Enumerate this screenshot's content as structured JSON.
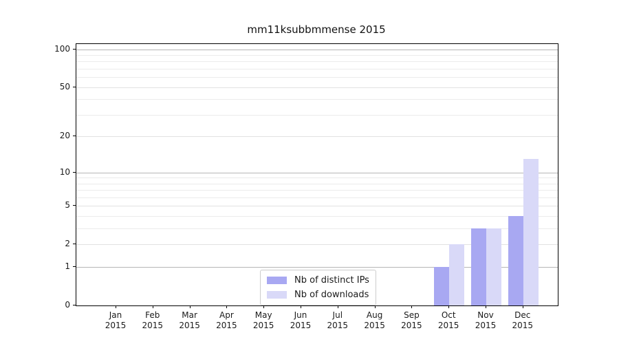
{
  "figure": {
    "title": "mm11ksubbmmense 2015"
  },
  "legend": {
    "items": [
      {
        "label": "Nb of distinct IPs",
        "color": "#a8a8f2"
      },
      {
        "label": "Nb of downloads",
        "color": "#d9d9f8"
      }
    ]
  },
  "chart_data": {
    "type": "bar",
    "title": "mm11ksubbmmense 2015",
    "categories": [
      "Jan 2015",
      "Feb 2015",
      "Mar 2015",
      "Apr 2015",
      "May 2015",
      "Jun 2015",
      "Jul 2015",
      "Aug 2015",
      "Sep 2015",
      "Oct 2015",
      "Nov 2015",
      "Dec 2015"
    ],
    "series": [
      {
        "name": "Nb of distinct IPs",
        "color": "#a8a8f2",
        "values": [
          0,
          0,
          0,
          0,
          0,
          0,
          0,
          0,
          0,
          1,
          3,
          4
        ]
      },
      {
        "name": "Nb of downloads",
        "color": "#d9d9f8",
        "values": [
          0,
          0,
          0,
          0,
          0,
          0,
          0,
          0,
          0,
          2,
          3,
          13
        ]
      }
    ],
    "xlabel": "",
    "ylabel": "",
    "y_scale": "log1p",
    "ylim": [
      0,
      110
    ],
    "y_ticks": [
      0,
      1,
      2,
      5,
      10,
      20,
      50,
      100
    ],
    "y_minor_ticks": [
      3,
      4,
      6,
      7,
      8,
      9,
      30,
      40,
      60,
      70,
      80,
      90
    ],
    "grid": "horizontal",
    "legend_position": "lower center",
    "colors": {
      "bar_dark": "#a8a8f2",
      "bar_light": "#d9d9f8",
      "grid_power": "#b5b5b5",
      "grid_major": "#e2e2e2",
      "grid_minor": "#ebebeb",
      "spine": "#000000"
    }
  }
}
